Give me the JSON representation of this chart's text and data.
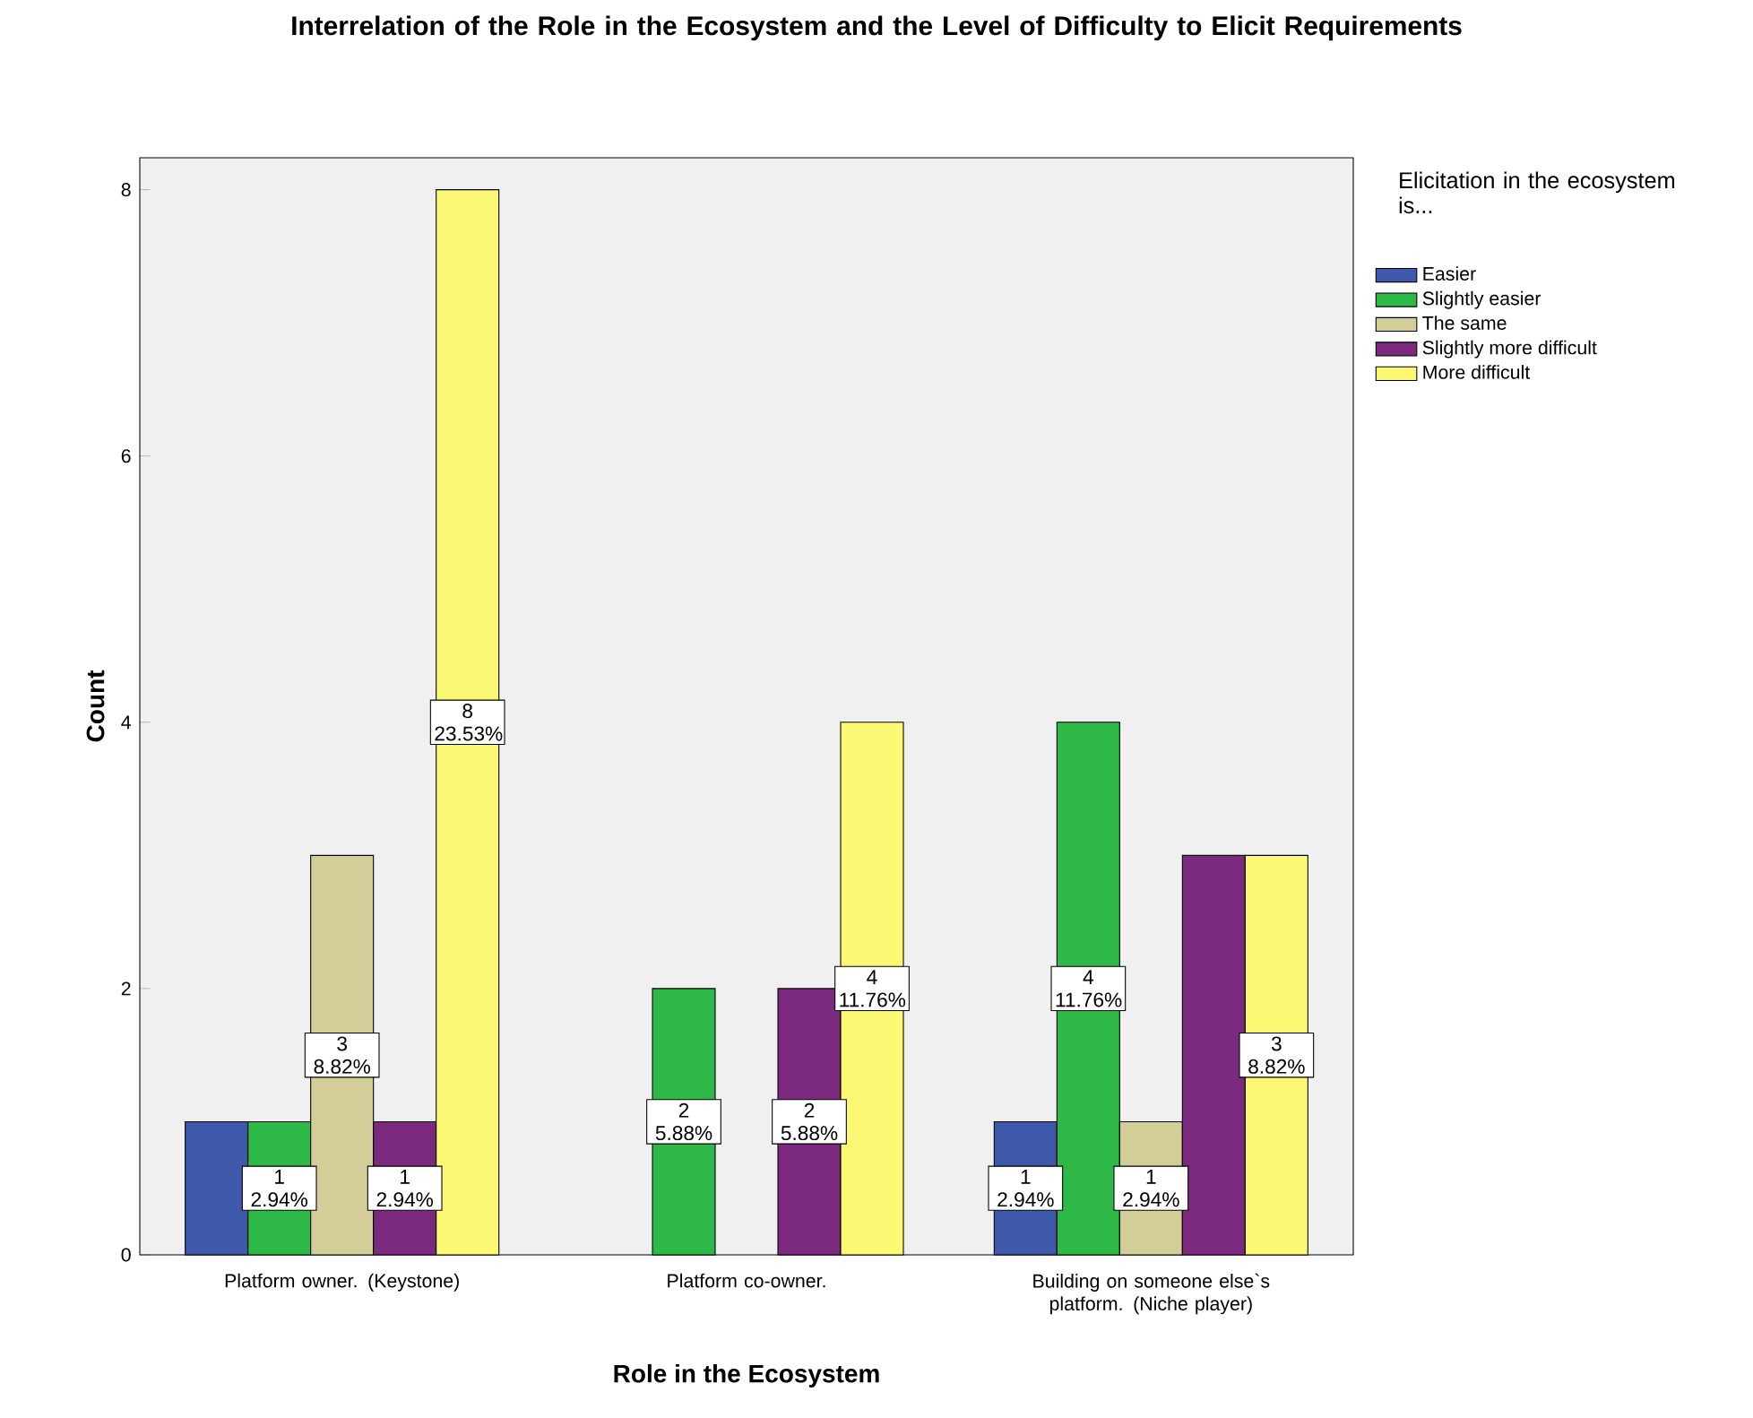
{
  "chart_data": {
    "type": "bar",
    "title": "Interrelation of the Role in the Ecosystem and the Level of Difficulty to Elicit Requirements",
    "xlabel": "Role in the Ecosystem",
    "ylabel": "Count",
    "legend_title": "Elicitation in the ecosystem is...",
    "categories": [
      "Platform owner. (Keystone)",
      "Platform co-owner.",
      "Building on someone else`s platform. (Niche player)"
    ],
    "series": [
      {
        "name": "Easier",
        "color": "#3e58ac",
        "values": [
          1,
          null,
          1
        ],
        "value_labels": [
          null,
          null,
          "1 2.94%"
        ]
      },
      {
        "name": "Slightly easier",
        "color": "#2eb848",
        "values": [
          1,
          2,
          4
        ],
        "value_labels": [
          "1 2.94%",
          "2 5.88%",
          "4 11.76%"
        ]
      },
      {
        "name": "The same",
        "color": "#d3ce97",
        "values": [
          3,
          null,
          1
        ],
        "value_labels": [
          "3 8.82%",
          null,
          "1 2.94%"
        ]
      },
      {
        "name": "Slightly more difficult",
        "color": "#7b2a7e",
        "values": [
          1,
          2,
          3
        ],
        "value_labels": [
          "1 2.94%",
          "2 5.88%",
          null
        ]
      },
      {
        "name": "More difficult",
        "color": "#fbf873",
        "values": [
          8,
          4,
          3
        ],
        "value_labels": [
          "8 23.53%",
          "4 11.76%",
          "3 8.82%"
        ]
      }
    ],
    "ylim": [
      0,
      8.24
    ],
    "yticks": [
      0,
      2,
      4,
      6,
      8
    ],
    "grid": false,
    "legend": "right"
  }
}
